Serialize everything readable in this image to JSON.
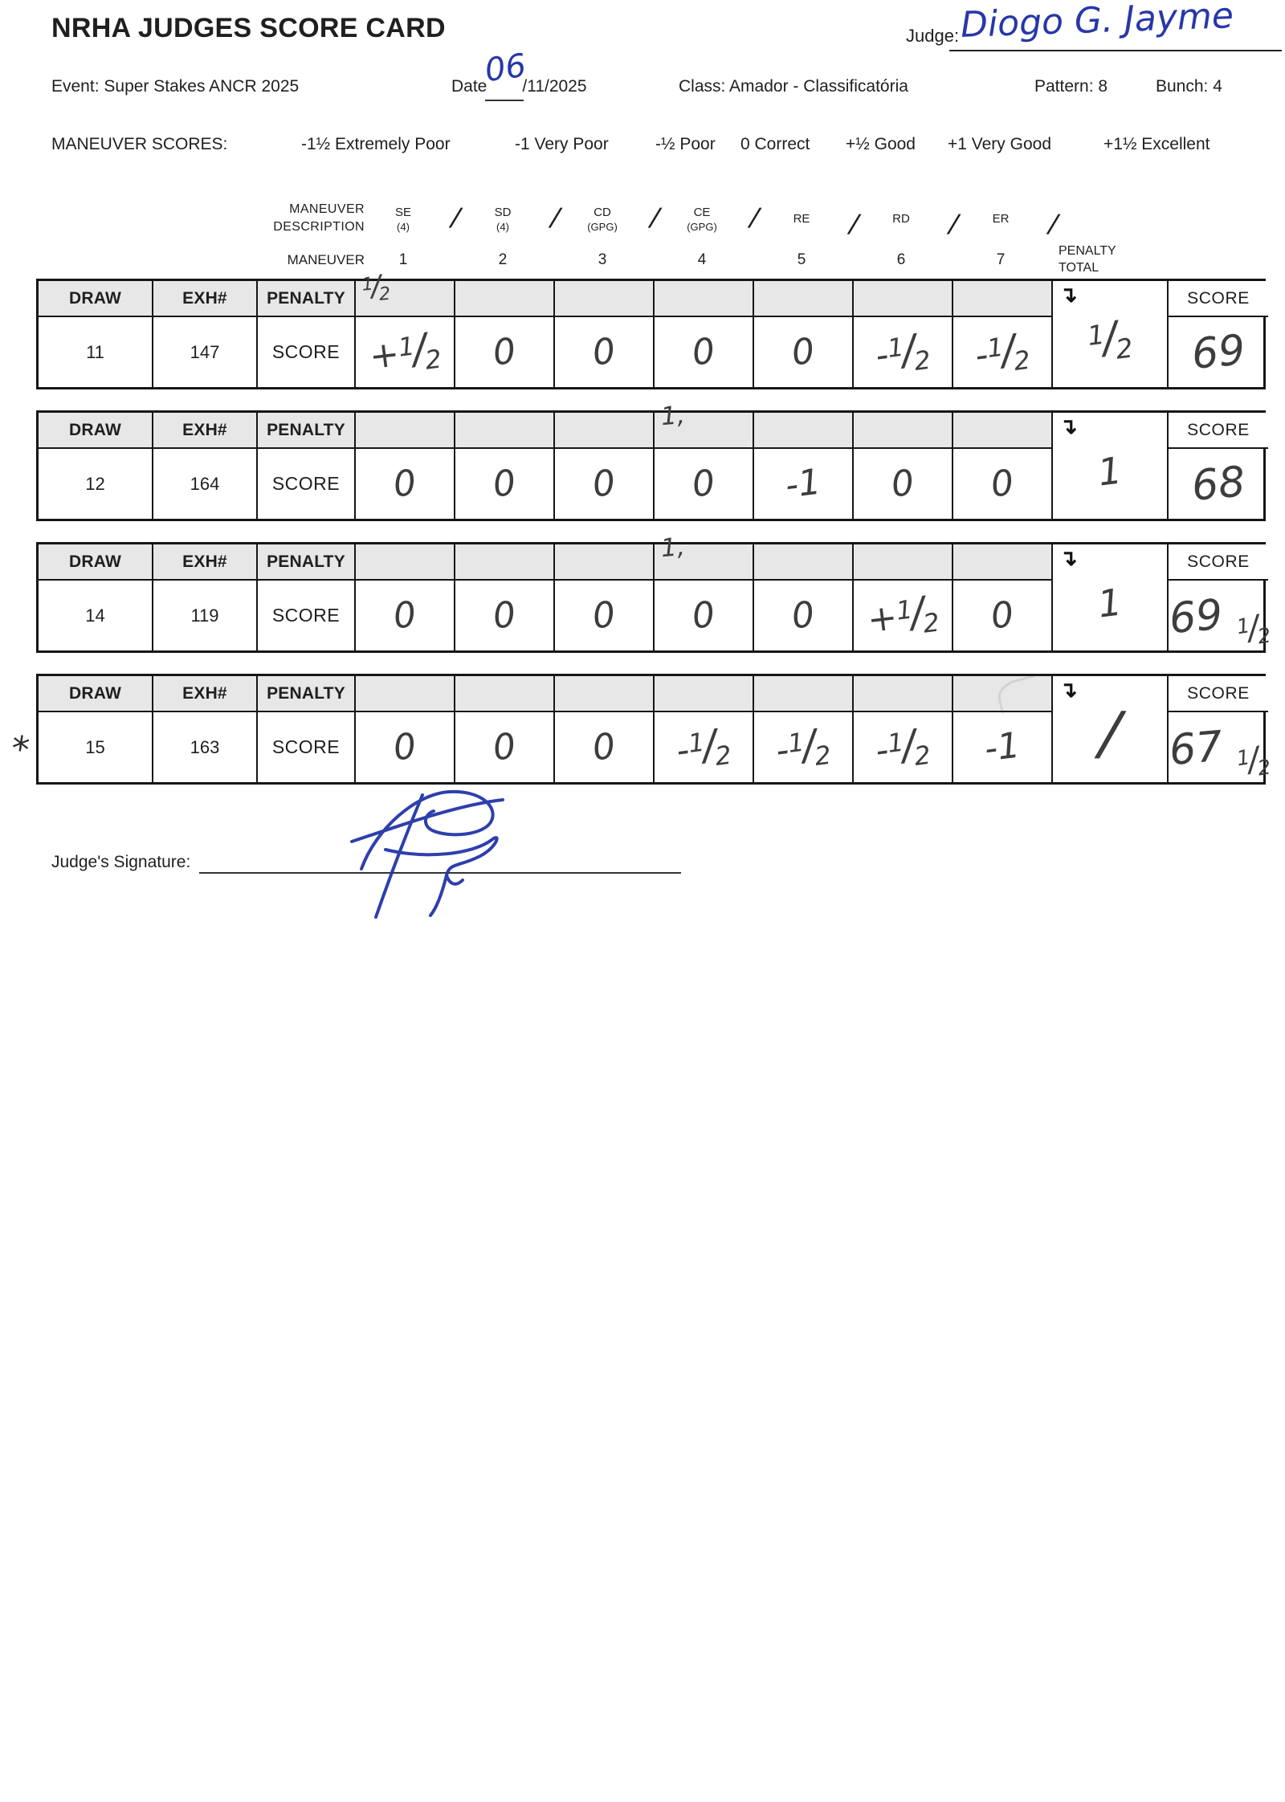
{
  "header": {
    "title": "NRHA JUDGES SCORE CARD",
    "judge_label": "Judge:",
    "judge_name": "Diogo G. Jayme",
    "event_label": "Event:",
    "event_value": "Super Stakes ANCR 2025",
    "date_label": "Date",
    "date_value_handwritten": "06",
    "date_value_printed": "/11/2025",
    "class_label": "Class:",
    "class_value": "Amador - Classificatória",
    "pattern_label": "Pattern:",
    "pattern_value": "8",
    "bunch_label": "Bunch:",
    "bunch_value": "4"
  },
  "legend": {
    "label": "MANEUVER SCORES:",
    "items": [
      "-1½ Extremely Poor",
      "-1 Very Poor",
      "-½ Poor",
      "0 Correct",
      "+½ Good",
      "+1 Very Good",
      "+1½ Excellent"
    ]
  },
  "maneuver_header": {
    "description_label_1": "MANEUVER",
    "description_label_2": "DESCRIPTION",
    "maneuver_label": "MANEUVER",
    "codes": [
      {
        "code": "SE",
        "sub": "(4)"
      },
      {
        "code": "SD",
        "sub": "(4)"
      },
      {
        "code": "CD",
        "sub": "(GPG)"
      },
      {
        "code": "CE",
        "sub": "(GPG)"
      },
      {
        "code": "RE",
        "sub": ""
      },
      {
        "code": "RD",
        "sub": ""
      },
      {
        "code": "ER",
        "sub": ""
      }
    ],
    "separator": "/",
    "numbers": [
      "1",
      "2",
      "3",
      "4",
      "5",
      "6",
      "7"
    ],
    "penalty_total_label_1": "PENALTY",
    "penalty_total_label_2": "TOTAL",
    "arrow_icon": "↴"
  },
  "table": {
    "draw_label": "DRAW",
    "exh_label": "EXH#",
    "penalty_label": "PENALTY",
    "score_row_label": "SCORE",
    "score_col_label": "SCORE"
  },
  "blocks": [
    {
      "draw": "11",
      "exh": "147",
      "penalties": [
        "1/2",
        "",
        "",
        "",
        "",
        "",
        ""
      ],
      "scores": [
        "+1/2",
        "0",
        "0",
        "0",
        "0",
        "-1/2",
        "-1/2"
      ],
      "penalty_total": "1/2",
      "score": "69",
      "margin_mark": "",
      "faint_erased_mark": false
    },
    {
      "draw": "12",
      "exh": "164",
      "penalties": [
        "",
        "",
        "",
        "1,",
        "",
        "",
        ""
      ],
      "scores": [
        "0",
        "0",
        "0",
        "0",
        "-1",
        "0",
        "0"
      ],
      "penalty_total": "1",
      "score": "68",
      "margin_mark": "",
      "faint_erased_mark": false
    },
    {
      "draw": "14",
      "exh": "119",
      "penalties": [
        "",
        "",
        "",
        "1,",
        "",
        "",
        ""
      ],
      "scores": [
        "0",
        "0",
        "0",
        "0",
        "0",
        "+1/2",
        "0"
      ],
      "penalty_total": "1",
      "score": "69 1/2",
      "margin_mark": "",
      "faint_erased_mark": false
    },
    {
      "draw": "15",
      "exh": "163",
      "penalties": [
        "",
        "",
        "",
        "",
        "",
        "",
        ""
      ],
      "scores": [
        "0",
        "0",
        "0",
        "-1/2",
        "-1/2",
        "-1/2",
        "-1"
      ],
      "penalty_total": "/",
      "score": "67 1/2",
      "margin_mark": "*",
      "faint_erased_mark": true
    }
  ],
  "footer": {
    "signature_label": "Judge's Signature:"
  },
  "colors": {
    "ink_blue": "#2737a9",
    "pencil_gray": "#3d3d3d",
    "header_shade": "#e7e7e7",
    "border_black": "#161616"
  }
}
